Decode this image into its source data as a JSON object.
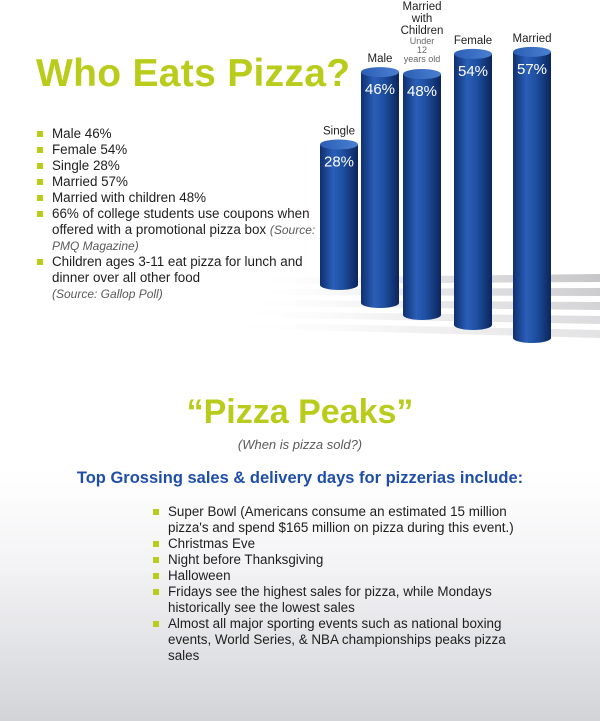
{
  "title": "Who Eats Pizza?",
  "facts": [
    {
      "text": "Male 46%",
      "source": ""
    },
    {
      "text": "Female 54%",
      "source": ""
    },
    {
      "text": "Single 28%",
      "source": ""
    },
    {
      "text": "Married 57%",
      "source": ""
    },
    {
      "text": "Married with children 48%",
      "source": ""
    },
    {
      "text": "66% of college students use coupons when offered with a promotional pizza box",
      "source": "(Source: PMQ Magazine)"
    },
    {
      "text": "Children ages 3-11 eat pizza for lunch and dinner over all other food",
      "source": "(Source: Gallop Poll)"
    }
  ],
  "chart_data": {
    "type": "bar",
    "categories": [
      "Single",
      "Male",
      "Married with Children",
      "Female",
      "Married"
    ],
    "category_note": {
      "Married with Children": "Under 12 years old"
    },
    "values": [
      28,
      46,
      48,
      54,
      57
    ],
    "value_labels": [
      "28%",
      "46%",
      "48%",
      "54%",
      "57%"
    ],
    "unit": "%",
    "style": "3d-cylinder",
    "bar_color": "#1e4fa0",
    "ylim": [
      0,
      60
    ],
    "grid": false,
    "legend": "none"
  },
  "peaks_section": {
    "title": "“Pizza Peaks”",
    "subtitle": "(When is pizza sold?)",
    "heading": "Top Grossing sales & delivery days for pizzerias include:",
    "items": [
      "Super Bowl (Americans consume an estimated 15 million pizza's and spend $165 million on pizza during this event.)",
      "Christmas Eve",
      "Night before Thanksgiving",
      "Halloween",
      "Fridays see the highest sales for pizza, while Mondays historically see the lowest sales",
      "Almost all major sporting events such as national boxing events, World Series, & NBA championships peaks pizza sales"
    ]
  },
  "colors": {
    "accent": "#b9cc1c",
    "heading_blue": "#1f4ea8",
    "bar": "#1e4fa0"
  }
}
